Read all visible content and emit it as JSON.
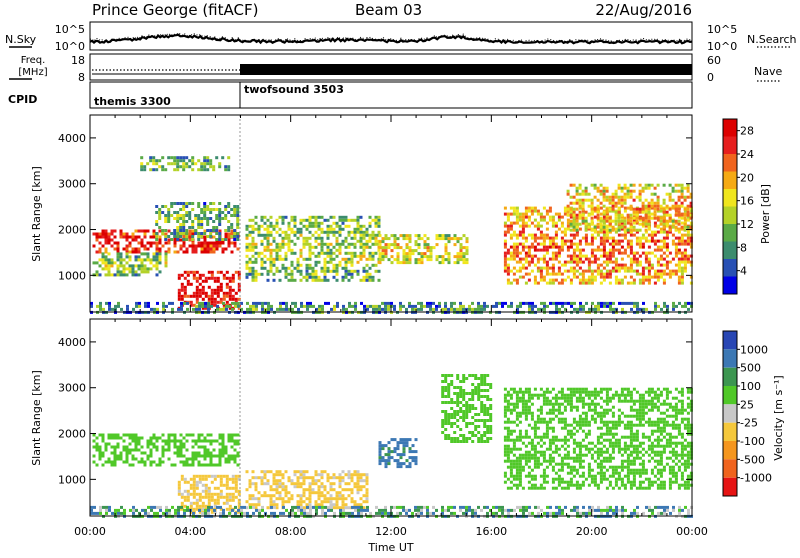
{
  "header": {
    "station": "Prince George (fitACF)",
    "beam": "Beam 03",
    "date": "22/Aug/2016"
  },
  "noise_panel": {
    "left_label": "N.Sky",
    "right_label": "N.Search",
    "left_ticks": [
      "10^5",
      "10^0"
    ],
    "right_ticks": [
      "10^5",
      "10^0"
    ]
  },
  "freq_panel": {
    "left_label_line1": "Freq.",
    "left_label_line2": "[MHz]",
    "right_label": "Nave",
    "left_ticks": [
      "18",
      "8"
    ],
    "right_ticks": [
      "60",
      "0"
    ]
  },
  "cpid_panel": {
    "label": "CPID",
    "modes": [
      {
        "name": "themis 3300",
        "start_hour": 0
      },
      {
        "name": "twofsound 3503",
        "start_hour": 6
      }
    ]
  },
  "power_panel": {
    "ylabel": "Slant Range [km]",
    "yticks": [
      "1000",
      "2000",
      "3000",
      "4000"
    ],
    "colorbar": {
      "label": "Power [dB]",
      "ticks": [
        "4",
        "8",
        "12",
        "16",
        "20",
        "24",
        "28"
      ],
      "colors": [
        "#0000e6",
        "#2850b4",
        "#3c8c6e",
        "#5aaa46",
        "#b4d228",
        "#f0e61e",
        "#f5aa14",
        "#f0641e",
        "#e61e1e",
        "#dc0000"
      ]
    }
  },
  "velocity_panel": {
    "ylabel": "Slant Range [km]",
    "yticks": [
      "1000",
      "2000",
      "3000",
      "4000"
    ],
    "colorbar": {
      "label": "Velocity [m s⁻¹]",
      "ticks": [
        "1000",
        "500",
        "100",
        "25",
        "-25",
        "-100",
        "-500",
        "-1000"
      ],
      "colors": [
        "#2846b4",
        "#3c78b4",
        "#3c9650",
        "#50c828",
        "#c8c8c8",
        "#f5c83c",
        "#f5961e",
        "#f0641e",
        "#e61414"
      ]
    }
  },
  "xaxis": {
    "label": "Time UT",
    "ticks": [
      "00:00",
      "04:00",
      "08:00",
      "12:00",
      "16:00",
      "20:00",
      "00:00"
    ]
  },
  "chart_data": [
    {
      "type": "heatmap",
      "title": "Power",
      "xlabel": "Time UT",
      "ylabel": "Slant Range [km]",
      "xlim_hours": [
        0,
        24
      ],
      "ylim_km": [
        200,
        4500
      ],
      "zlabel": "Power [dB]",
      "zlim": [
        0,
        30
      ],
      "regions": [
        {
          "t0": 0.1,
          "t1": 5.9,
          "r0": 1500,
          "r1": 2000,
          "value": 24
        },
        {
          "t0": 0.1,
          "t1": 3.0,
          "r0": 1000,
          "r1": 1500,
          "value": 10
        },
        {
          "t0": 3.5,
          "t1": 5.9,
          "r0": 300,
          "r1": 1100,
          "value": 26
        },
        {
          "t0": 2.6,
          "t1": 5.9,
          "r0": 1800,
          "r1": 2600,
          "value": 8
        },
        {
          "t0": 2.0,
          "t1": 5.5,
          "r0": 3300,
          "r1": 3600,
          "value": 8
        },
        {
          "t0": 6.2,
          "t1": 11.5,
          "r0": 900,
          "r1": 2300,
          "value": 10
        },
        {
          "t0": 11.5,
          "t1": 15.0,
          "r0": 1300,
          "r1": 1900,
          "value": 14
        },
        {
          "t0": 16.5,
          "t1": 24.0,
          "r0": 800,
          "r1": 2500,
          "value": 18
        },
        {
          "t0": 19.0,
          "t1": 24.0,
          "r0": 2000,
          "r1": 3000,
          "value": 16
        },
        {
          "t0": 0.0,
          "t1": 24.0,
          "r0": 200,
          "r1": 420,
          "value": 6
        }
      ]
    },
    {
      "type": "heatmap",
      "title": "Velocity",
      "xlabel": "Time UT",
      "ylabel": "Slant Range [km]",
      "xlim_hours": [
        0,
        24
      ],
      "ylim_km": [
        200,
        4500
      ],
      "zlabel": "Velocity [m s⁻¹]",
      "zlim": [
        -1000,
        1000
      ],
      "regions": [
        {
          "t0": 0.1,
          "t1": 5.9,
          "r0": 1300,
          "r1": 2000,
          "value": 0
        },
        {
          "t0": 3.5,
          "t1": 5.9,
          "r0": 300,
          "r1": 1100,
          "value": -200
        },
        {
          "t0": 6.2,
          "t1": 11.0,
          "r0": 400,
          "r1": 1200,
          "value": -200
        },
        {
          "t0": 11.5,
          "t1": 13.0,
          "r0": 1300,
          "r1": 1900,
          "value": 200
        },
        {
          "t0": 14.0,
          "t1": 16.0,
          "r0": 1800,
          "r1": 3300,
          "value": 0
        },
        {
          "t0": 16.5,
          "t1": 24.0,
          "r0": 800,
          "r1": 3000,
          "value": 0
        },
        {
          "t0": 0.0,
          "t1": 24.0,
          "r0": 200,
          "r1": 420,
          "value": 60
        }
      ]
    }
  ]
}
